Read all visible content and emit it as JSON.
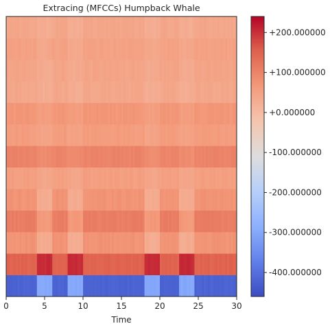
{
  "chart_data": {
    "type": "heatmap",
    "title": "Extracing (MFCCs) Humpback Whale",
    "xlabel": "Time",
    "ylabel": "",
    "xlim": [
      0,
      30
    ],
    "x_ticks": [
      "0",
      "5",
      "10",
      "15",
      "20",
      "25",
      "30"
    ],
    "n_coefficients": 13,
    "coefficient_base_values": [
      -420,
      150,
      75,
      110,
      75,
      55,
      100,
      60,
      70,
      40,
      45,
      50,
      40
    ],
    "energetic_segments_time": [
      [
        4,
        6
      ],
      [
        8,
        10
      ],
      [
        18,
        20
      ],
      [
        22.5,
        24.5
      ]
    ],
    "colorbar": {
      "colormap": "coolwarm",
      "range": [
        -460,
        240
      ],
      "tick_values": [
        200,
        100,
        0,
        -100,
        -200,
        -300,
        -400
      ],
      "tick_labels": [
        "+200.000000",
        "+100.000000",
        "+0.000000",
        "-100.000000",
        "-200.000000",
        "-300.000000",
        "-400.000000"
      ]
    },
    "grid": false
  }
}
